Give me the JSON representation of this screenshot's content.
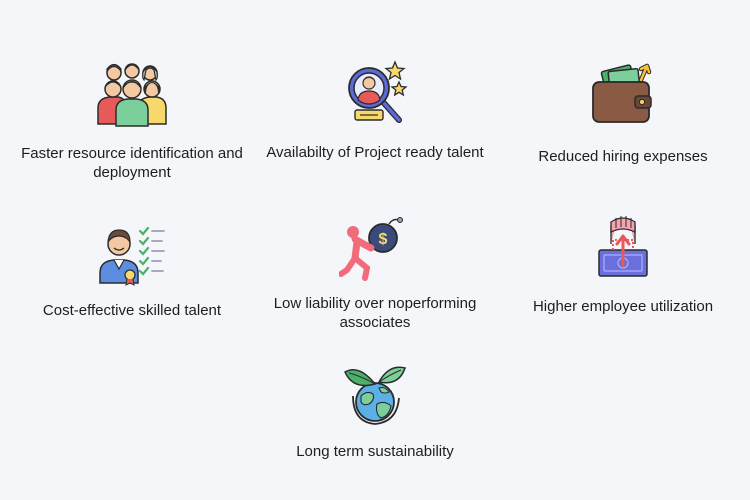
{
  "colors": {
    "background": "#f5f6fa",
    "text": "#1e1e1e",
    "outline": "#2b2b2b"
  },
  "benefits": [
    {
      "icon": "team-icon",
      "label": "Faster resource identification and deployment"
    },
    {
      "icon": "talent-search-icon",
      "label": "Availabilty of Project ready talent"
    },
    {
      "icon": "wallet-icon",
      "label": "Reduced hiring expenses"
    },
    {
      "icon": "skilled-person-checklist-icon",
      "label": "Cost-effective skilled talent"
    },
    {
      "icon": "person-carrying-money-bag-icon",
      "label": "Low liability over noperforming associates"
    },
    {
      "icon": "hands-lifting-money-icon",
      "label": "Higher employee utilization"
    },
    {
      "icon": "globe-leaves-icon",
      "label": "Long term sustainability"
    }
  ]
}
